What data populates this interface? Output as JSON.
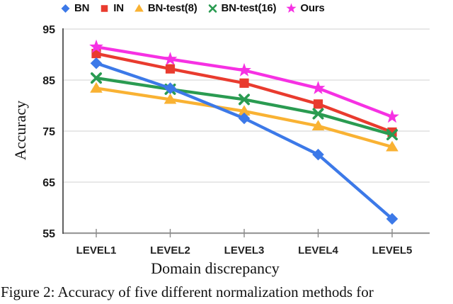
{
  "figure": {
    "caption": "Figure 2:  Accuracy of five different normalization methods for"
  },
  "chart_data": {
    "type": "line",
    "title": "",
    "xlabel": "Domain discrepancy",
    "ylabel": "Accuracy",
    "categories": [
      "LEVEL1",
      "LEVEL2",
      "LEVEL3",
      "LEVEL4",
      "LEVEL5"
    ],
    "ylim": [
      55,
      95
    ],
    "yticks": [
      55,
      65,
      75,
      85,
      95
    ],
    "grid": true,
    "legend_position": "top",
    "series": [
      {
        "name": "BN",
        "marker": "diamond",
        "color": "#3C79E8",
        "values": [
          88.3,
          83.4,
          77.5,
          70.4,
          57.8
        ]
      },
      {
        "name": "IN",
        "marker": "square",
        "color": "#E93B2E",
        "values": [
          90.2,
          87.2,
          84.4,
          80.3,
          74.8
        ]
      },
      {
        "name": "BN-test(8)",
        "marker": "triangle",
        "color": "#F9B233",
        "values": [
          83.4,
          81.2,
          78.9,
          76.0,
          71.9
        ]
      },
      {
        "name": "BN-test(16)",
        "marker": "x",
        "color": "#2A9B51",
        "values": [
          85.4,
          83.2,
          81.2,
          78.4,
          74.3
        ]
      },
      {
        "name": "Ours",
        "marker": "star",
        "color": "#F631E3",
        "values": [
          91.5,
          89.1,
          86.9,
          83.4,
          77.8
        ]
      }
    ]
  }
}
